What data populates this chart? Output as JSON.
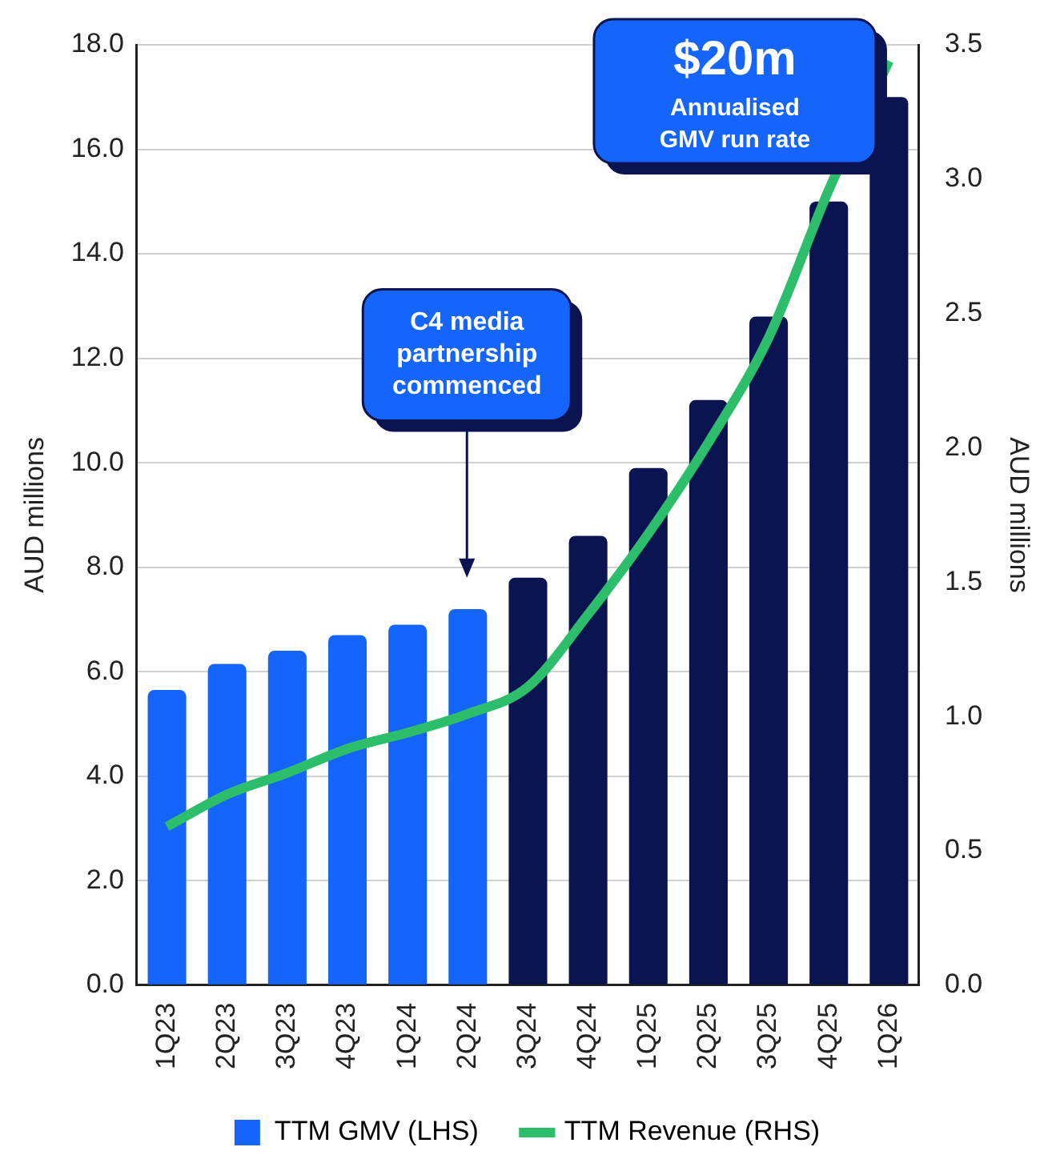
{
  "chart_data": {
    "type": "bar",
    "categories": [
      "1Q23",
      "2Q23",
      "3Q23",
      "4Q23",
      "1Q24",
      "2Q24",
      "3Q24",
      "4Q24",
      "1Q25",
      "2Q25",
      "3Q25",
      "4Q25",
      "1Q26"
    ],
    "series": [
      {
        "name": "TTM GMV (LHS)",
        "color": "#1565fb",
        "colors": [
          "#1565fb",
          "#1565fb",
          "#1565fb",
          "#1565fb",
          "#1565fb",
          "#1565fb",
          "#0a1450",
          "#0a1450",
          "#0a1450",
          "#0a1450",
          "#0a1450",
          "#0a1450",
          "#0a1450"
        ],
        "values": [
          5.65,
          6.15,
          6.4,
          6.7,
          6.9,
          7.2,
          7.8,
          8.6,
          9.9,
          11.2,
          12.8,
          15.0,
          17.0
        ]
      },
      {
        "name": "TTM Revenue (RHS)",
        "type": "line",
        "axis": "y2",
        "color": "#2dbe6c",
        "values": [
          0.59,
          0.71,
          0.79,
          0.88,
          0.94,
          1.01,
          1.11,
          1.38,
          1.68,
          2.02,
          2.41,
          2.96,
          3.44
        ]
      }
    ],
    "ylabel": "AUD millions",
    "y2label": "AUD millions",
    "ylim": [
      0,
      18
    ],
    "yticks": [
      {
        "value": 0,
        "label": "0.0"
      },
      {
        "value": 2,
        "label": "2.0"
      },
      {
        "value": 4,
        "label": "4.0"
      },
      {
        "value": 6,
        "label": "6.0"
      },
      {
        "value": 8,
        "label": "8.0"
      },
      {
        "value": 10,
        "label": "10.0"
      },
      {
        "value": 12,
        "label": "12.0"
      },
      {
        "value": 14,
        "label": "14.0"
      },
      {
        "value": 16,
        "label": "16.0"
      },
      {
        "value": 18,
        "label": "18.0"
      }
    ],
    "y2lim": [
      0,
      3.5
    ],
    "y2ticks": [
      {
        "value": 0,
        "label": "0.0"
      },
      {
        "value": 0.5,
        "label": "0.5"
      },
      {
        "value": 1,
        "label": "1.0"
      },
      {
        "value": 1.5,
        "label": "1.5"
      },
      {
        "value": 2,
        "label": "2.0"
      },
      {
        "value": 2.5,
        "label": "2.5"
      },
      {
        "value": 3,
        "label": "3.0"
      },
      {
        "value": 3.5,
        "label": "3.5"
      }
    ],
    "grid": "y",
    "legend": "bottom",
    "marker": "none",
    "line_style": "solid",
    "annotations": [
      "C4 media partnership commenced",
      "$20m",
      "Annualised GMV run rate"
    ]
  }
}
